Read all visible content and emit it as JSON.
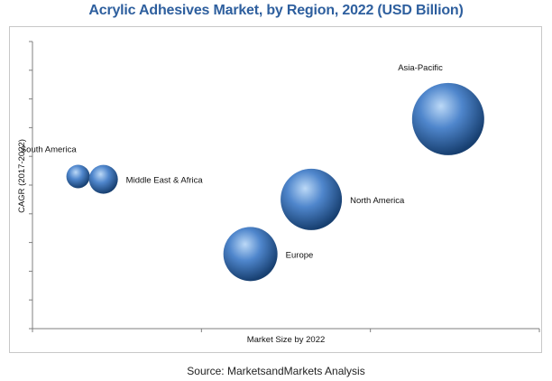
{
  "chart_data": {
    "type": "bubble",
    "title": "Acrylic Adhesives Market, by Region, 2022 (USD Billion)",
    "xlabel": "Market Size by 2022",
    "ylabel": "CAGR (2017-2022)",
    "xlim": [
      0,
      100
    ],
    "ylim": [
      0,
      100
    ],
    "grid": false,
    "legend": "none",
    "series": [
      {
        "name": "Asia-Pacific",
        "x": 82,
        "y": 73,
        "size": 40,
        "label_side": "top-left"
      },
      {
        "name": "North America",
        "x": 55,
        "y": 45,
        "size": 34,
        "label_side": "right"
      },
      {
        "name": "Europe",
        "x": 43,
        "y": 26,
        "size": 30,
        "label_side": "right"
      },
      {
        "name": "South America",
        "x": 9,
        "y": 53,
        "size": 13,
        "label_side": "top-left"
      },
      {
        "name": "Middle East & Africa",
        "x": 14,
        "y": 52,
        "size": 16,
        "label_side": "right"
      }
    ]
  },
  "source": "Source: MarketsandMarkets Analysis",
  "colors": {
    "title": "#2e5f9e",
    "bubble_highlight": "#bcd9f7",
    "bubble_mid": "#4f86cc",
    "bubble_dark": "#173f70",
    "axis": "#7f7f7f"
  }
}
